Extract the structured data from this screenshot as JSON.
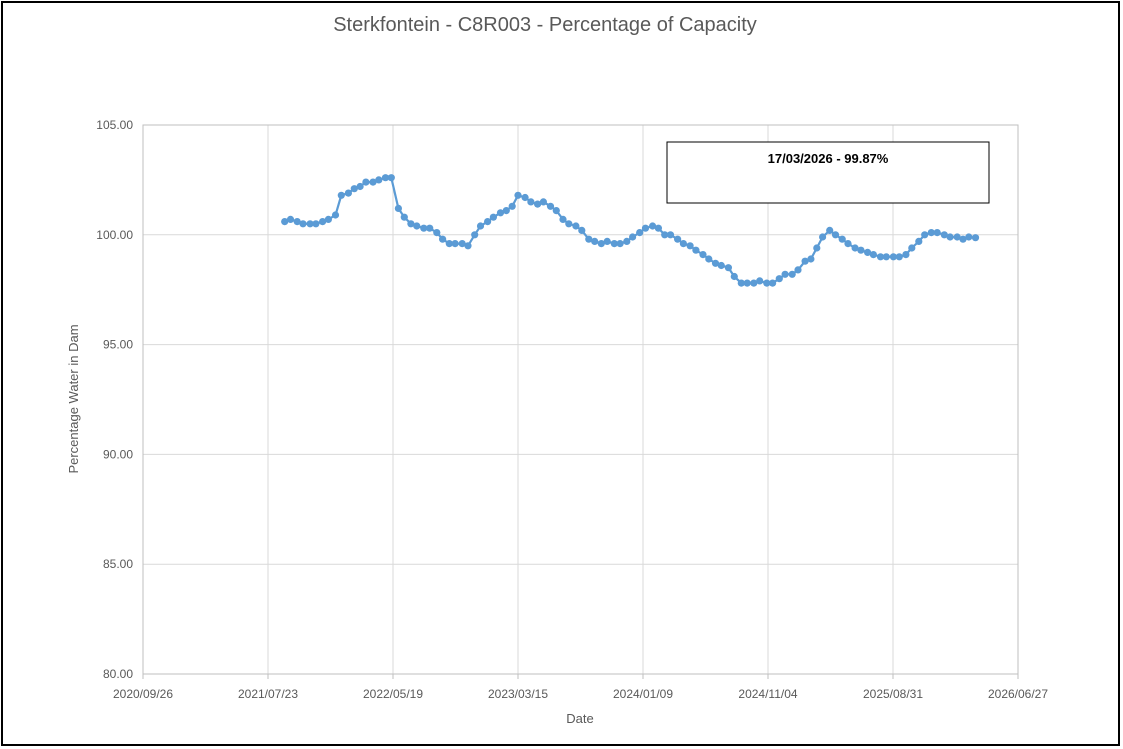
{
  "chart_data": {
    "type": "line",
    "title": "Sterkfontein - C8R003 - Percentage of Capacity",
    "xlabel": "Date",
    "ylabel": "Percentage Water in Dam",
    "ylim": [
      80,
      105
    ],
    "xlim": [
      "2020-09-26",
      "2026-06-27"
    ],
    "y_ticks": [
      "80.00",
      "85.00",
      "90.00",
      "95.00",
      "100.00",
      "105.00"
    ],
    "x_ticks": [
      "2020/09/26",
      "2021/07/23",
      "2022/05/19",
      "2023/03/15",
      "2024/01/09",
      "2024/11/04",
      "2025/08/31",
      "2026/06/27"
    ],
    "grid": true,
    "annotation": "17/03/2026 - 99.87%",
    "series_color": "#5B9BD5",
    "series": [
      {
        "x": [
          "2021-09-01",
          "2021-09-15",
          "2021-10-01",
          "2021-10-15",
          "2021-11-01",
          "2021-11-15",
          "2021-12-01",
          "2021-12-15",
          "2022-01-01",
          "2022-01-15",
          "2022-02-01",
          "2022-02-15",
          "2022-03-01",
          "2022-03-15",
          "2022-04-01",
          "2022-04-15",
          "2022-05-01",
          "2022-05-15",
          "2022-06-01",
          "2022-06-15",
          "2022-07-01",
          "2022-07-15",
          "2022-08-01",
          "2022-08-15",
          "2022-09-01",
          "2022-09-15",
          "2022-10-01",
          "2022-10-15",
          "2022-11-01",
          "2022-11-15",
          "2022-12-01",
          "2022-12-15",
          "2023-01-01",
          "2023-01-15",
          "2023-02-01",
          "2023-02-15",
          "2023-03-01",
          "2023-03-15",
          "2023-04-01",
          "2023-04-15",
          "2023-05-01",
          "2023-05-15",
          "2023-06-01",
          "2023-06-15",
          "2023-07-01",
          "2023-07-15",
          "2023-08-01",
          "2023-08-15",
          "2023-09-01",
          "2023-09-15",
          "2023-10-01",
          "2023-10-15",
          "2023-11-01",
          "2023-11-15",
          "2023-12-01",
          "2023-12-15",
          "2024-01-01",
          "2024-01-15",
          "2024-02-01",
          "2024-02-15",
          "2024-03-01",
          "2024-03-15",
          "2024-04-01",
          "2024-04-15",
          "2024-05-01",
          "2024-05-15",
          "2024-06-01",
          "2024-06-15",
          "2024-07-01",
          "2024-07-15",
          "2024-08-01",
          "2024-08-15",
          "2024-09-01",
          "2024-09-15",
          "2024-10-01",
          "2024-10-15",
          "2024-11-01",
          "2024-11-15",
          "2024-12-01",
          "2024-12-15",
          "2025-01-01",
          "2025-01-15",
          "2025-02-01",
          "2025-02-15",
          "2025-03-01",
          "2025-03-15",
          "2025-04-01",
          "2025-04-15",
          "2025-05-01",
          "2025-05-15",
          "2025-06-01",
          "2025-06-15",
          "2025-07-01",
          "2025-07-15",
          "2025-08-01",
          "2025-08-15",
          "2025-09-01",
          "2025-09-15",
          "2025-10-01",
          "2025-10-15",
          "2025-11-01",
          "2025-11-15",
          "2025-12-01",
          "2025-12-15",
          "2026-01-01",
          "2026-01-15",
          "2026-02-01",
          "2026-02-15",
          "2026-03-01",
          "2026-03-17"
        ],
        "y": [
          100.6,
          100.7,
          100.6,
          100.5,
          100.5,
          100.5,
          100.6,
          100.7,
          100.9,
          101.8,
          101.9,
          102.1,
          102.2,
          102.4,
          102.4,
          102.5,
          102.6,
          102.6,
          101.2,
          100.8,
          100.5,
          100.4,
          100.3,
          100.3,
          100.1,
          99.8,
          99.6,
          99.6,
          99.6,
          99.5,
          100.0,
          100.4,
          100.6,
          100.8,
          101.0,
          101.1,
          101.3,
          101.8,
          101.7,
          101.5,
          101.4,
          101.5,
          101.3,
          101.1,
          100.7,
          100.5,
          100.4,
          100.2,
          99.8,
          99.7,
          99.6,
          99.7,
          99.6,
          99.6,
          99.7,
          99.9,
          100.1,
          100.3,
          100.4,
          100.3,
          100.0,
          100.0,
          99.8,
          99.6,
          99.5,
          99.3,
          99.1,
          98.9,
          98.7,
          98.6,
          98.5,
          98.1,
          97.8,
          97.8,
          97.8,
          97.9,
          97.8,
          97.8,
          98.0,
          98.2,
          98.2,
          98.4,
          98.8,
          98.9,
          99.4,
          99.9,
          100.2,
          100.0,
          99.8,
          99.6,
          99.4,
          99.3,
          99.2,
          99.1,
          99.0,
          99.0,
          99.0,
          99.0,
          99.1,
          99.4,
          99.7,
          100.0,
          100.1,
          100.1,
          100.0,
          99.9,
          99.9,
          99.8,
          99.9,
          99.87
        ]
      }
    ]
  }
}
